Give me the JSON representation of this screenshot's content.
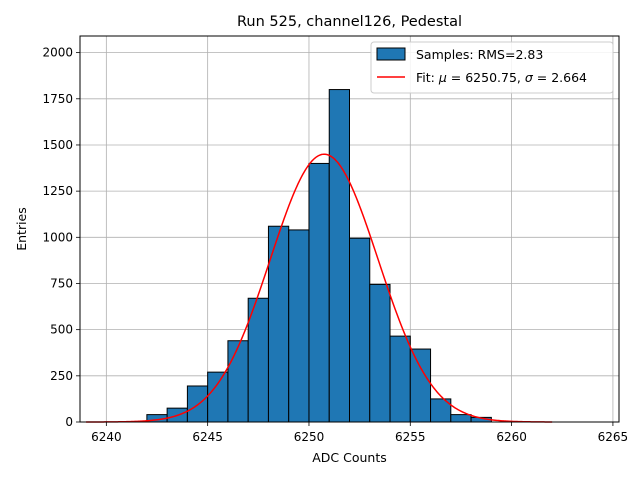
{
  "chart_data": {
    "type": "histogram",
    "title": "Run 525, channel126, Pedestal",
    "xlabel": "ADC Counts",
    "ylabel": "Entries",
    "xlim": [
      6238.7,
      6265.3
    ],
    "ylim": [
      0,
      2090
    ],
    "xticks": [
      6240,
      6245,
      6250,
      6255,
      6260,
      6265
    ],
    "yticks": [
      0,
      250,
      500,
      750,
      1000,
      1250,
      1500,
      1750,
      2000
    ],
    "grid": true,
    "legend_position": "top-right",
    "bin_width": 1,
    "bin_centers": [
      6242.5,
      6243.5,
      6244.5,
      6245.5,
      6246.5,
      6247.5,
      6248.5,
      6249.5,
      6250.5,
      6251.5,
      6252.5,
      6253.5,
      6254.5,
      6255.5,
      6256.5,
      6257.5,
      6258.5
    ],
    "counts": [
      40,
      75,
      195,
      270,
      440,
      670,
      1060,
      1040,
      1400,
      1800,
      995,
      745,
      465,
      395,
      125,
      40,
      25
    ],
    "histogram_series": {
      "name": "Samples: RMS=2.83",
      "face_color": "#1f77b4",
      "edge_color": "#000000"
    },
    "fit_series": {
      "name": "Fit: μ = 6250.75, σ = 2.664",
      "label_prefix": "Fit: ",
      "mu_symbol": "μ",
      "mu_text": " = 6250.75, ",
      "sigma_symbol": "σ",
      "sigma_text": " = 2.664",
      "color": "#ff0000",
      "mu": 6250.75,
      "sigma": 2.664,
      "amplitude": 1450,
      "x_range": [
        6239,
        6262
      ]
    }
  }
}
